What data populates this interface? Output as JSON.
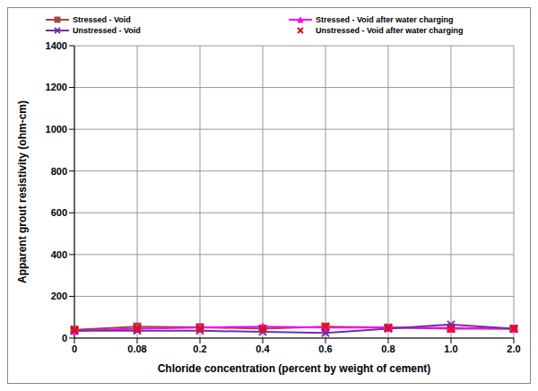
{
  "chart_data": {
    "type": "line",
    "x_label": "Chloride concentration (percent by weight of cement)",
    "y_label": "Apparent grout resistivity (ohm-cm)",
    "categories": [
      "0",
      "0.08",
      "0.2",
      "0.4",
      "0.6",
      "0.8",
      "1.0",
      "2.0"
    ],
    "series": [
      {
        "name": "Stressed - Void",
        "color": "#9e4a3c",
        "marker": "square",
        "line_style": "solid",
        "values": [
          40,
          55,
          52,
          45,
          55,
          50,
          45,
          45
        ]
      },
      {
        "name": "Stressed - Void after water charging",
        "color": "#ff00ff",
        "marker": "triangle",
        "line_style": "solid",
        "values": [
          35,
          45,
          50,
          55,
          50,
          50,
          48,
          45
        ]
      },
      {
        "name": "Unstressed - Void",
        "color": "#7030a0",
        "marker": "x",
        "line_style": "solid",
        "values": [
          35,
          35,
          35,
          30,
          25,
          45,
          65,
          45
        ]
      },
      {
        "name": "Unstressed - Void after water charging",
        "color": "#ff0000",
        "marker": "x",
        "line_style": "none",
        "values": [
          40,
          45,
          45,
          45,
          55,
          50,
          45,
          45
        ]
      }
    ],
    "ylim": [
      0,
      1400
    ],
    "yticks": [
      0,
      200,
      400,
      600,
      800,
      1000,
      1200,
      1400
    ],
    "grid": true,
    "legend": "top"
  }
}
